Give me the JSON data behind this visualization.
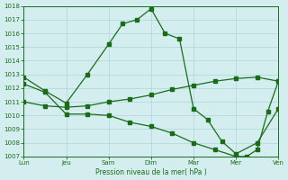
{
  "xlabel": "Pression niveau de la mer( hPa )",
  "bg_color": "#d4eef0",
  "grid_color": "#b0d4d8",
  "line_color": "#1a6b1a",
  "ylim": [
    1007,
    1018
  ],
  "xlim": [
    0,
    6
  ],
  "xtick_labels": [
    "Lun",
    "Jeu",
    "Sam",
    "Dim",
    "Mar",
    "Mer",
    "Ven"
  ],
  "xtick_positions": [
    0,
    1,
    2,
    3,
    4,
    5,
    6
  ],
  "line_high_x": [
    0,
    0.5,
    1.0,
    1.5,
    2.0,
    2.33,
    2.67,
    3.0,
    3.33,
    3.67,
    4.0,
    4.33,
    4.67,
    5.0,
    5.5,
    6.0
  ],
  "line_high_y": [
    1012.8,
    1011.8,
    1010.9,
    1013.0,
    1015.2,
    1016.7,
    1017.0,
    1017.8,
    1016.0,
    1015.6,
    1010.5,
    1009.7,
    1008.1,
    1007.2,
    1008.0,
    1010.5
  ],
  "line_mid_x": [
    0,
    0.5,
    1.0,
    1.5,
    2.0,
    2.5,
    3.0,
    3.5,
    4.0,
    4.5,
    5.0,
    5.5,
    6.0
  ],
  "line_mid_y": [
    1011.0,
    1010.7,
    1010.6,
    1010.7,
    1011.0,
    1011.2,
    1011.5,
    1011.9,
    1012.2,
    1012.5,
    1012.7,
    1012.8,
    1012.5
  ],
  "line_low_x": [
    0,
    0.5,
    1.0,
    1.5,
    2.0,
    2.5,
    3.0,
    3.5,
    4.0,
    4.5,
    5.0,
    5.25,
    5.5,
    5.75,
    6.0
  ],
  "line_low_y": [
    1012.3,
    1011.7,
    1010.1,
    1010.1,
    1010.0,
    1009.5,
    1009.2,
    1008.7,
    1008.0,
    1007.5,
    1007.0,
    1007.0,
    1007.5,
    1010.3,
    1012.5
  ],
  "marker": "s",
  "markersize": 2.5,
  "linewidth": 0.9
}
